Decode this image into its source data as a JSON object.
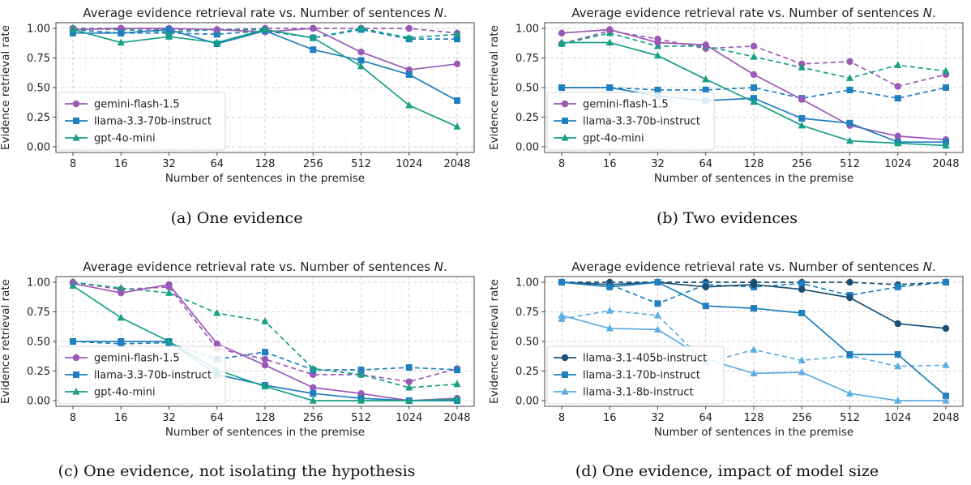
{
  "chart_data": [
    {
      "type": "line",
      "title": "Average evidence retrieval rate vs. Number of sentences N.",
      "caption": "(a) One evidence",
      "xlabel": "Number of sentences in the premise",
      "ylabel": "Evidence retrieval rate",
      "x": [
        8,
        16,
        32,
        64,
        128,
        256,
        512,
        1024,
        2048
      ],
      "xscale": "log2",
      "ylim": [
        0,
        1.0
      ],
      "yticks": [
        "0.00",
        "0.25",
        "0.50",
        "0.75",
        "1.00"
      ],
      "grid": true,
      "legend": "lower-left",
      "series": [
        {
          "name": "gemini-flash-1.5",
          "color": "#9b59b6",
          "marker": "circle",
          "style": "solid",
          "values": [
            0.99,
            1.0,
            1.0,
            0.99,
            0.97,
            1.0,
            0.8,
            0.65,
            0.7
          ]
        },
        {
          "color": "#9b59b6",
          "marker": "circle",
          "style": "dashed",
          "values": [
            1.0,
            1.0,
            0.99,
            0.99,
            1.0,
            1.0,
            1.0,
            1.0,
            0.96
          ]
        },
        {
          "name": "llama-3.3-70b-instruct",
          "color": "#1f7fbf",
          "marker": "square",
          "style": "solid",
          "values": [
            0.96,
            0.96,
            0.99,
            0.87,
            0.98,
            0.82,
            0.73,
            0.61,
            0.39
          ]
        },
        {
          "color": "#1f7fbf",
          "marker": "square",
          "style": "dashed",
          "values": [
            0.99,
            0.96,
            0.96,
            0.95,
            0.98,
            0.92,
            0.99,
            0.91,
            0.91
          ]
        },
        {
          "name": "gpt-4o-mini",
          "color": "#17a085",
          "marker": "triangle",
          "style": "solid",
          "values": [
            0.99,
            0.88,
            0.93,
            0.88,
            0.99,
            0.92,
            0.68,
            0.35,
            0.17
          ]
        },
        {
          "color": "#17a085",
          "marker": "triangle",
          "style": "dashed",
          "values": [
            1.0,
            0.99,
            0.97,
            0.99,
            0.99,
            0.92,
            1.0,
            0.92,
            0.95
          ]
        }
      ]
    },
    {
      "type": "line",
      "title": "Average evidence retrieval rate vs. Number of sentences N.",
      "caption": "(b) Two evidences",
      "xlabel": "Number of sentences in the premise",
      "ylabel": "Evidence retrieval rate",
      "x": [
        8,
        16,
        32,
        64,
        128,
        256,
        512,
        1024,
        2048
      ],
      "xscale": "log2",
      "ylim": [
        0,
        1.0
      ],
      "yticks": [
        "0.00",
        "0.25",
        "0.50",
        "0.75",
        "1.00"
      ],
      "grid": true,
      "legend": "lower-left",
      "series": [
        {
          "name": "gemini-flash-1.5",
          "color": "#9b59b6",
          "marker": "circle",
          "style": "solid",
          "values": [
            0.96,
            0.99,
            0.88,
            0.86,
            0.61,
            0.4,
            0.18,
            0.09,
            0.06
          ]
        },
        {
          "color": "#9b59b6",
          "marker": "circle",
          "style": "dashed",
          "values": [
            0.87,
            0.98,
            0.91,
            0.83,
            0.85,
            0.7,
            0.72,
            0.51,
            0.61
          ]
        },
        {
          "name": "llama-3.3-70b-instruct",
          "color": "#1f7fbf",
          "marker": "square",
          "style": "solid",
          "values": [
            0.5,
            0.5,
            0.43,
            0.39,
            0.41,
            0.24,
            0.2,
            0.04,
            0.04
          ]
        },
        {
          "color": "#1f7fbf",
          "marker": "square",
          "style": "dashed",
          "values": [
            0.5,
            0.5,
            0.48,
            0.48,
            0.5,
            0.41,
            0.48,
            0.41,
            0.5
          ]
        },
        {
          "name": "gpt-4o-mini",
          "color": "#17a085",
          "marker": "triangle",
          "style": "solid",
          "values": [
            0.88,
            0.88,
            0.77,
            0.57,
            0.38,
            0.18,
            0.05,
            0.03,
            0.01
          ]
        },
        {
          "color": "#17a085",
          "marker": "triangle",
          "style": "dashed",
          "values": [
            0.87,
            0.96,
            0.85,
            0.85,
            0.76,
            0.67,
            0.58,
            0.69,
            0.64
          ]
        }
      ]
    },
    {
      "type": "line",
      "title": "Average evidence retrieval rate vs. Number of sentences N.",
      "caption": "(c) One evidence, not isolating the hypothesis",
      "xlabel": "Number of sentences in the premise",
      "ylabel": "Evidence retrieval rate",
      "x": [
        8,
        16,
        32,
        64,
        128,
        256,
        512,
        1024,
        2048
      ],
      "xscale": "log2",
      "ylim": [
        0,
        1.0
      ],
      "yticks": [
        "0.00",
        "0.25",
        "0.50",
        "0.75",
        "1.00"
      ],
      "grid": true,
      "legend": "lower-left",
      "series": [
        {
          "name": "gemini-flash-1.5",
          "color": "#9b59b6",
          "marker": "circle",
          "style": "solid",
          "values": [
            0.99,
            0.91,
            0.98,
            0.48,
            0.3,
            0.11,
            0.06,
            0.0,
            0.02
          ]
        },
        {
          "color": "#9b59b6",
          "marker": "circle",
          "style": "dashed",
          "values": [
            1.0,
            0.94,
            0.96,
            0.44,
            0.35,
            0.22,
            0.22,
            0.16,
            0.27
          ]
        },
        {
          "name": "llama-3.3-70b-instruct",
          "color": "#1f7fbf",
          "marker": "square",
          "style": "solid",
          "values": [
            0.5,
            0.5,
            0.5,
            0.22,
            0.13,
            0.06,
            0.02,
            0.0,
            0.0
          ]
        },
        {
          "color": "#1f7fbf",
          "marker": "square",
          "style": "dashed",
          "values": [
            0.5,
            0.48,
            0.49,
            0.35,
            0.41,
            0.26,
            0.26,
            0.28,
            0.26
          ]
        },
        {
          "name": "gpt-4o-mini",
          "color": "#17a085",
          "marker": "triangle",
          "style": "solid",
          "values": [
            0.97,
            0.7,
            0.5,
            0.26,
            0.12,
            0.0,
            0.0,
            0.0,
            0.01
          ]
        },
        {
          "color": "#17a085",
          "marker": "triangle",
          "style": "dashed",
          "values": [
            1.0,
            0.95,
            0.91,
            0.74,
            0.67,
            0.27,
            0.22,
            0.11,
            0.14
          ]
        }
      ]
    },
    {
      "type": "line",
      "title": "Average evidence retrieval rate vs. Number of sentences N.",
      "caption": "(d) One evidence, impact of model size",
      "xlabel": "Number of sentences in the premise",
      "ylabel": "Evidence retrieval rate",
      "x": [
        8,
        16,
        32,
        64,
        128,
        256,
        512,
        1024,
        2048
      ],
      "xscale": "log2",
      "ylim": [
        0,
        1.0
      ],
      "yticks": [
        "0.00",
        "0.25",
        "0.50",
        "0.75",
        "1.00"
      ],
      "grid": true,
      "legend": "lower-left",
      "series": [
        {
          "name": "llama-3.1-405b-instruct",
          "color": "#1b4f72",
          "marker": "circle",
          "style": "solid",
          "values": [
            1.0,
            0.98,
            1.0,
            0.96,
            0.98,
            0.94,
            0.87,
            0.65,
            0.61
          ]
        },
        {
          "color": "#1b4f72",
          "marker": "circle",
          "style": "dashed",
          "values": [
            1.0,
            1.0,
            1.0,
            1.0,
            1.0,
            1.0,
            1.0,
            0.98,
            1.0
          ]
        },
        {
          "name": "llama-3.1-70b-instruct",
          "color": "#1f7fbf",
          "marker": "square",
          "style": "solid",
          "values": [
            1.0,
            0.96,
            1.0,
            0.8,
            0.78,
            0.74,
            0.39,
            0.39,
            0.04
          ]
        },
        {
          "color": "#1f7fbf",
          "marker": "square",
          "style": "dashed",
          "values": [
            1.0,
            0.98,
            0.82,
            0.98,
            0.96,
            0.99,
            0.89,
            0.96,
            1.0
          ]
        },
        {
          "name": "llama-3.1-8b-instruct",
          "color": "#5dade2",
          "marker": "triangle",
          "style": "solid",
          "values": [
            0.72,
            0.61,
            0.6,
            0.35,
            0.23,
            0.24,
            0.06,
            0.0,
            0.0
          ]
        },
        {
          "color": "#5dade2",
          "marker": "triangle",
          "style": "dashed",
          "values": [
            0.69,
            0.76,
            0.72,
            0.32,
            0.43,
            0.34,
            0.38,
            0.29,
            0.3
          ]
        }
      ]
    }
  ]
}
